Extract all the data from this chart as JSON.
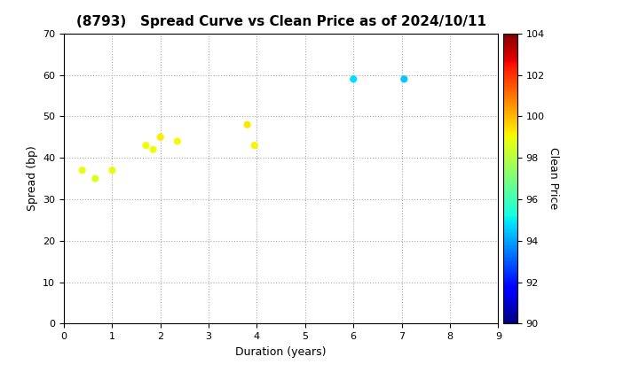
{
  "title": "(8793)   Spread Curve vs Clean Price as of 2024/10/11",
  "xlabel": "Duration (years)",
  "ylabel": "Spread (bp)",
  "colorbar_label": "Clean Price",
  "xlim": [
    0,
    9
  ],
  "ylim": [
    0,
    70
  ],
  "xticks": [
    0,
    1,
    2,
    3,
    4,
    5,
    6,
    7,
    8,
    9
  ],
  "yticks": [
    0,
    10,
    20,
    30,
    40,
    50,
    60,
    70
  ],
  "cbar_min": 90,
  "cbar_max": 104,
  "cbar_ticks": [
    90,
    92,
    94,
    96,
    98,
    100,
    102,
    104
  ],
  "points": [
    {
      "duration": 0.38,
      "spread": 37,
      "price": 98.8
    },
    {
      "duration": 0.65,
      "spread": 35,
      "price": 98.6
    },
    {
      "duration": 1.0,
      "spread": 37,
      "price": 98.8
    },
    {
      "duration": 1.7,
      "spread": 43,
      "price": 99.0
    },
    {
      "duration": 1.85,
      "spread": 42,
      "price": 98.9
    },
    {
      "duration": 2.0,
      "spread": 45,
      "price": 99.2
    },
    {
      "duration": 2.35,
      "spread": 44,
      "price": 99.0
    },
    {
      "duration": 3.8,
      "spread": 48,
      "price": 99.3
    },
    {
      "duration": 3.95,
      "spread": 43,
      "price": 99.1
    },
    {
      "duration": 6.0,
      "spread": 59,
      "price": 94.8
    },
    {
      "duration": 7.05,
      "spread": 59,
      "price": 94.5
    }
  ],
  "background_color": "#ffffff",
  "marker_size": 35,
  "title_fontsize": 11,
  "axis_fontsize": 9,
  "tick_fontsize": 8
}
